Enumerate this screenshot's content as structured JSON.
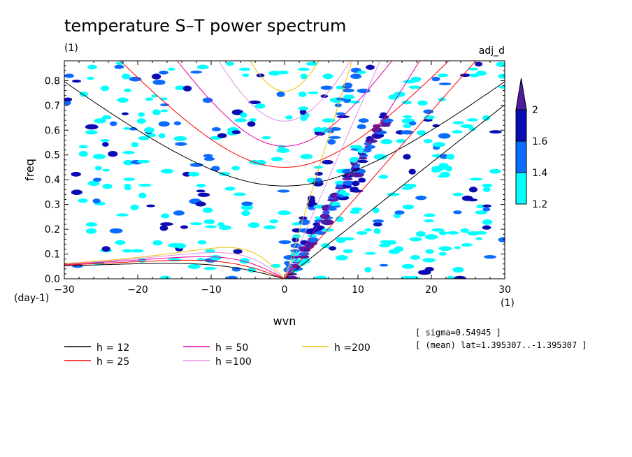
{
  "chart_data": {
    "type": "heatmap",
    "title": "temperature S–T power spectrum",
    "title_units": "(1)",
    "variable": "adj_d",
    "xlabel": "wvn",
    "x_units": "(1)",
    "ylabel": "freq",
    "y_units": "(day-1)",
    "xlim": [
      -30,
      30
    ],
    "ylim": [
      0,
      0.88
    ],
    "x_ticks": [
      -30,
      -20,
      -10,
      0,
      10,
      20,
      30
    ],
    "y_ticks": [
      0.0,
      0.1,
      0.2,
      0.3,
      0.4,
      0.5,
      0.6,
      0.7,
      0.8
    ],
    "colorbar": {
      "levels": [
        1.2,
        1.4,
        1.6,
        2
      ],
      "colors": [
        "#00ffff",
        "#0a6cff",
        "#0b0bb4",
        "#4d1aa0"
      ],
      "extend": "max"
    },
    "dispersion_curves": [
      {
        "label": "h = 12",
        "h": 12,
        "color": "#000000"
      },
      {
        "label": "h = 25",
        "h": 25,
        "color": "#ff0000"
      },
      {
        "label": "h = 50",
        "h": 50,
        "color": "#e000a0"
      },
      {
        "label": "h =100",
        "h": 100,
        "color": "#e090e0"
      },
      {
        "label": "h =200",
        "h": 200,
        "color": "#f0c000"
      }
    ],
    "notes": {
      "sigma": "[ sigma=0.54945 ]",
      "mean": "[ (mean) lat=1.395307..-1.395307 ]"
    }
  }
}
